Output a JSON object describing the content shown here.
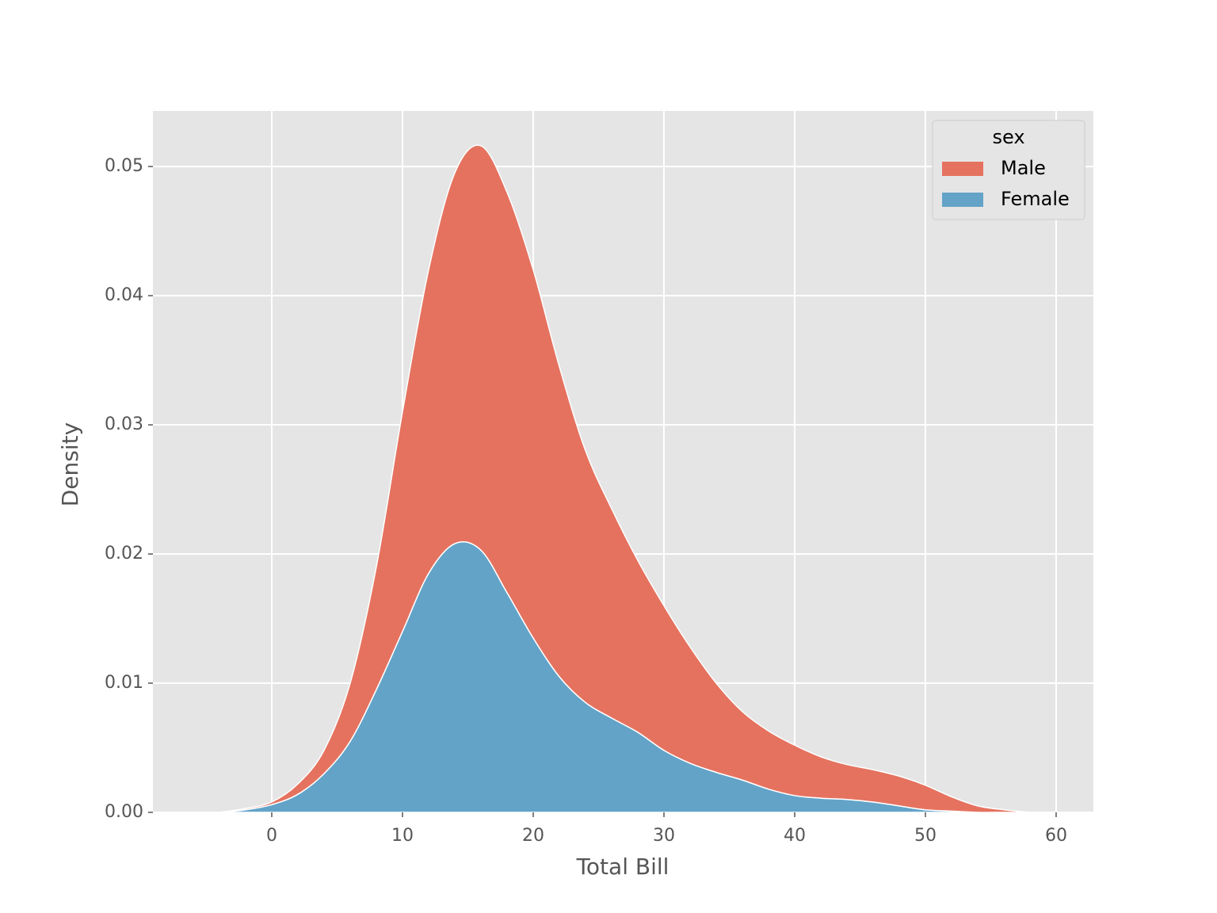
{
  "chart_data": {
    "type": "stacked_area",
    "xlabel": "Total Bill",
    "ylabel": "Density",
    "x": [
      -4,
      -2,
      0,
      2,
      4,
      6,
      8,
      10,
      12,
      14,
      16,
      18,
      20,
      22,
      24,
      26,
      28,
      30,
      32,
      34,
      36,
      38,
      40,
      42,
      44,
      46,
      48,
      50,
      52,
      54,
      56,
      58
    ],
    "series": [
      {
        "name": "Male",
        "color": "#e5725f",
        "values": [
          0,
          0.0001,
          0.0002,
          0.0008,
          0.0018,
          0.0045,
          0.0095,
          0.017,
          0.0235,
          0.0287,
          0.0313,
          0.031,
          0.0285,
          0.024,
          0.0195,
          0.0162,
          0.0133,
          0.0112,
          0.009,
          0.0069,
          0.0053,
          0.0045,
          0.0039,
          0.0032,
          0.0027,
          0.0025,
          0.0023,
          0.0019,
          0.0011,
          0.0005,
          0.0002,
          0
        ]
      },
      {
        "name": "Female",
        "color": "#63a3c8",
        "values": [
          0,
          0.0002,
          0.0006,
          0.0014,
          0.003,
          0.0055,
          0.0095,
          0.014,
          0.0185,
          0.0208,
          0.0203,
          0.017,
          0.0135,
          0.0105,
          0.0085,
          0.0073,
          0.0062,
          0.0048,
          0.0038,
          0.0031,
          0.0025,
          0.0018,
          0.0013,
          0.0011,
          0.001,
          0.0008,
          0.0005,
          0.0002,
          0.0001,
          0,
          0,
          0
        ]
      }
    ],
    "legend_title": "sex",
    "legend": "upper right",
    "xlim": [
      -9.09,
      62.85
    ],
    "ylim": [
      0,
      0.0543
    ],
    "xticks": [
      0,
      10,
      20,
      30,
      40,
      50,
      60
    ],
    "yticks": [
      {
        "value": 0,
        "label": "0.00"
      },
      0.01,
      0.02,
      0.03,
      0.04,
      0.05
    ],
    "grid": true
  }
}
